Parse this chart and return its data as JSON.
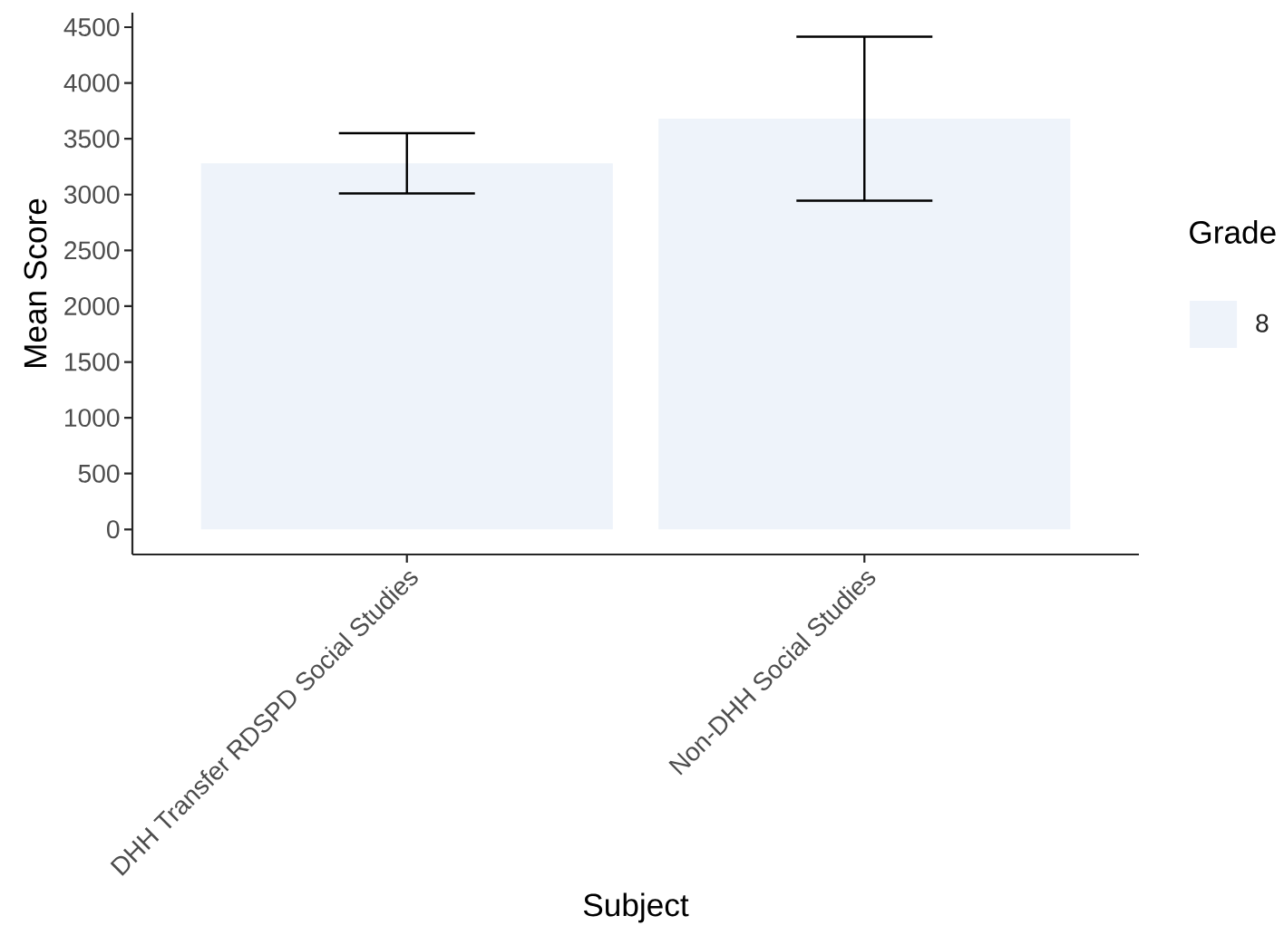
{
  "chart_data": {
    "type": "bar",
    "xlabel": "Subject",
    "ylabel": "Mean Score",
    "legend_title": "Grade",
    "categories": [
      "DHH Transfer RDSPD Social Studies",
      "Non-DHH Social Studies"
    ],
    "series": [
      {
        "name": "8",
        "color": "#eef3fa",
        "values": [
          3280,
          3680
        ],
        "errors": [
          [
            3010,
            3550
          ],
          [
            2945,
            4415
          ]
        ]
      }
    ],
    "ylim": [
      -225,
      4630
    ],
    "yticks": [
      0,
      500,
      1000,
      1500,
      2000,
      2500,
      3000,
      3500,
      4000,
      4500
    ],
    "legend": "right"
  }
}
